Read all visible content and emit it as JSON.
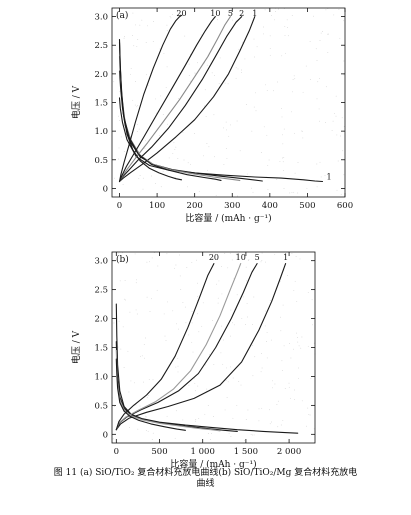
{
  "chart_data": [
    {
      "type": "line",
      "panel_label": "(a)",
      "xlabel": "比容量 / (mAh · g⁻¹)",
      "ylabel": "电压 / V",
      "xlim": [
        -20,
        600
      ],
      "ylim": [
        -0.15,
        3.15
      ],
      "xticks": [
        "0",
        "100",
        "200",
        "300",
        "400",
        "500",
        "600"
      ],
      "yticks": [
        "0",
        "0.5",
        "1.0",
        "1.5",
        "2.0",
        "2.5",
        "3.0"
      ],
      "grid": false,
      "series": [
        {
          "name": "1",
          "color": "#1a1a1a",
          "discharge": {
            "x": [
              0,
              2,
              8,
              20,
              45,
              80,
              130,
              200,
              280,
              360,
              430,
              490,
              520,
              540
            ],
            "y": [
              1.58,
              1.4,
              1.15,
              0.85,
              0.55,
              0.4,
              0.32,
              0.27,
              0.23,
              0.2,
              0.18,
              0.15,
              0.13,
              0.12
            ]
          },
          "charge": {
            "x": [
              0,
              10,
              30,
              60,
              100,
              150,
              200,
              250,
              290,
              320,
              345,
              360
            ],
            "y": [
              0.12,
              0.18,
              0.28,
              0.42,
              0.62,
              0.9,
              1.2,
              1.6,
              2.0,
              2.4,
              2.75,
              3.0
            ]
          }
        },
        {
          "name": "2",
          "color": "#1a1a1a",
          "discharge": {
            "x": [
              0,
              3,
              8,
              15,
              30,
              55,
              90,
              140,
              200,
              260,
              330,
              380
            ],
            "y": [
              2.05,
              1.75,
              1.4,
              1.1,
              0.8,
              0.55,
              0.42,
              0.33,
              0.27,
              0.22,
              0.17,
              0.13
            ]
          },
          "charge": {
            "x": [
              0,
              8,
              25,
              50,
              85,
              130,
              175,
              220,
              255,
              285,
              310,
              325
            ],
            "y": [
              0.12,
              0.2,
              0.32,
              0.5,
              0.72,
              1.05,
              1.45,
              1.9,
              2.3,
              2.65,
              2.9,
              3.0
            ]
          }
        },
        {
          "name": "5",
          "color": "#8a8a8a",
          "discharge": {
            "x": [
              0,
              3,
              8,
              15,
              30,
              55,
              90,
              140,
              200,
              250,
              295,
              320
            ],
            "y": [
              2.3,
              1.9,
              1.5,
              1.15,
              0.85,
              0.58,
              0.42,
              0.32,
              0.25,
              0.2,
              0.16,
              0.14
            ]
          },
          "charge": {
            "x": [
              0,
              8,
              22,
              45,
              75,
              115,
              160,
              200,
              235,
              260,
              280,
              295
            ],
            "y": [
              0.12,
              0.22,
              0.35,
              0.55,
              0.8,
              1.15,
              1.55,
              1.95,
              2.3,
              2.6,
              2.85,
              3.0
            ]
          }
        },
        {
          "name": "10",
          "color": "#1a1a1a",
          "discharge": {
            "x": [
              0,
              2,
              6,
              12,
              25,
              50,
              85,
              130,
              180,
              225,
              255,
              270
            ],
            "y": [
              2.55,
              2.1,
              1.65,
              1.25,
              0.9,
              0.6,
              0.42,
              0.32,
              0.24,
              0.19,
              0.16,
              0.14
            ]
          },
          "charge": {
            "x": [
              0,
              6,
              18,
              38,
              65,
              100,
              140,
              175,
              205,
              228,
              245,
              255
            ],
            "y": [
              0.12,
              0.22,
              0.38,
              0.6,
              0.9,
              1.3,
              1.75,
              2.15,
              2.5,
              2.75,
              2.92,
              3.0
            ]
          }
        },
        {
          "name": "20",
          "color": "#1a1a1a",
          "discharge": {
            "x": [
              0,
              2,
              5,
              10,
              20,
              35,
              55,
              80,
              105,
              130,
              150,
              165
            ],
            "y": [
              2.6,
              2.15,
              1.7,
              1.3,
              0.95,
              0.68,
              0.48,
              0.35,
              0.27,
              0.21,
              0.17,
              0.15
            ]
          },
          "charge": {
            "x": [
              0,
              4,
              12,
              25,
              42,
              65,
              90,
              115,
              135,
              150,
              160,
              165
            ],
            "y": [
              0.12,
              0.25,
              0.45,
              0.75,
              1.15,
              1.65,
              2.1,
              2.5,
              2.78,
              2.93,
              3.0,
              3.02
            ]
          }
        }
      ]
    },
    {
      "type": "line",
      "panel_label": "(b)",
      "xlabel": "比容量 / (mAh · g⁻¹)",
      "ylabel": "电压 / V",
      "xlim": [
        -50,
        2300
      ],
      "ylim": [
        -0.15,
        3.15
      ],
      "xticks": [
        "0",
        "500",
        "1 000",
        "1 500",
        "2 000"
      ],
      "yticks": [
        "0",
        "0.5",
        "1.0",
        "1.5",
        "2.0",
        "2.5",
        "3.0"
      ],
      "grid": false,
      "series": [
        {
          "name": "1",
          "color": "#1a1a1a",
          "discharge": {
            "x": [
              0,
              5,
              15,
              40,
              90,
              170,
              300,
              500,
              800,
              1100,
              1400,
              1700,
              1950,
              2100
            ],
            "y": [
              2.25,
              1.7,
              1.2,
              0.75,
              0.48,
              0.35,
              0.27,
              0.21,
              0.16,
              0.12,
              0.08,
              0.05,
              0.03,
              0.02
            ]
          },
          "charge": {
            "x": [
              0,
              50,
              150,
              350,
              600,
              900,
              1200,
              1450,
              1650,
              1800,
              1900,
              1960
            ],
            "y": [
              0.08,
              0.18,
              0.28,
              0.38,
              0.48,
              0.62,
              0.85,
              1.25,
              1.8,
              2.3,
              2.7,
              2.95
            ]
          }
        },
        {
          "name": "5",
          "color": "#1a1a1a",
          "discharge": {
            "x": [
              0,
              5,
              15,
              40,
              90,
              170,
              300,
              500,
              800,
              1050,
              1250,
              1400
            ],
            "y": [
              1.6,
              1.25,
              0.95,
              0.65,
              0.45,
              0.34,
              0.26,
              0.2,
              0.14,
              0.1,
              0.07,
              0.05
            ]
          },
          "charge": {
            "x": [
              0,
              40,
              120,
              280,
              480,
              720,
              950,
              1150,
              1330,
              1470,
              1570,
              1630
            ],
            "y": [
              0.08,
              0.2,
              0.3,
              0.42,
              0.55,
              0.75,
              1.05,
              1.5,
              2.0,
              2.45,
              2.8,
              2.95
            ]
          }
        },
        {
          "name": "10",
          "color": "#9a9a9a",
          "discharge": {
            "x": [
              0,
              5,
              15,
              40,
              90,
              170,
              300,
              500,
              750,
              950,
              1100,
              1200
            ],
            "y": [
              1.45,
              1.15,
              0.88,
              0.6,
              0.42,
              0.32,
              0.25,
              0.19,
              0.14,
              0.1,
              0.08,
              0.06
            ]
          },
          "charge": {
            "x": [
              0,
              35,
              110,
              260,
              450,
              660,
              860,
              1040,
              1200,
              1320,
              1400,
              1440
            ],
            "y": [
              0.08,
              0.2,
              0.3,
              0.42,
              0.56,
              0.78,
              1.1,
              1.55,
              2.05,
              2.5,
              2.8,
              2.95
            ]
          }
        },
        {
          "name": "20",
          "color": "#1a1a1a",
          "discharge": {
            "x": [
              0,
              5,
              15,
              40,
              90,
              160,
              260,
              400,
              560,
              700,
              800
            ],
            "y": [
              1.3,
              1.05,
              0.8,
              0.55,
              0.4,
              0.31,
              0.24,
              0.18,
              0.13,
              0.09,
              0.07
            ]
          },
          "charge": {
            "x": [
              0,
              30,
              90,
              200,
              350,
              520,
              680,
              830,
              960,
              1060,
              1130
            ],
            "y": [
              0.08,
              0.22,
              0.35,
              0.5,
              0.68,
              0.95,
              1.35,
              1.85,
              2.35,
              2.75,
              2.95
            ]
          }
        }
      ]
    }
  ],
  "caption": {
    "line1": "图 11   (a) SiO/TiO₂ 复合材料充放电曲线(b) SiO/TiO₂/Mg 复合材料充放电",
    "line2": "曲线"
  }
}
